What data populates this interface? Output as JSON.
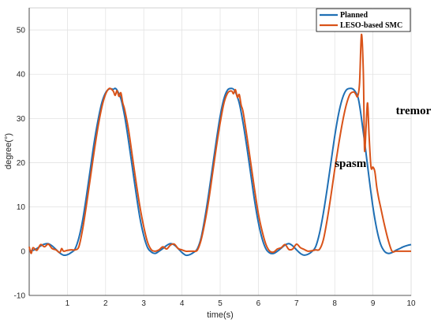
{
  "chart_data": {
    "type": "line",
    "title": "",
    "xlabel": "time(s)",
    "ylabel": "degree(°)",
    "xlim": [
      0,
      10
    ],
    "ylim": [
      -10,
      55
    ],
    "grid": true,
    "legend_placement": "top-right",
    "x_ticks": [
      1,
      2,
      3,
      4,
      5,
      6,
      7,
      8,
      9,
      10
    ],
    "y_ticks": [
      -10,
      0,
      10,
      20,
      30,
      40,
      50
    ],
    "colors": {
      "Planned": "#1f6fb4",
      "LESO-based SMC": "#d95319"
    },
    "series": [
      {
        "name": "Planned",
        "x": [
          0,
          0.1,
          0.2,
          0.3,
          0.4,
          0.5,
          0.6,
          0.7,
          0.8,
          0.9,
          1.0,
          1.1,
          1.2,
          1.3,
          1.4,
          1.5,
          1.6,
          1.7,
          1.8,
          1.9,
          2.0,
          2.1,
          2.2,
          2.25,
          2.3,
          2.4,
          2.5,
          2.6,
          2.7,
          2.8,
          2.9,
          3.0,
          3.1,
          3.2,
          3.3,
          3.4,
          3.5,
          3.6,
          3.7,
          3.8,
          3.9,
          4.0,
          4.1,
          4.2,
          4.3,
          4.4,
          4.5,
          4.6,
          4.7,
          4.8,
          4.9,
          5.0,
          5.1,
          5.2,
          5.3,
          5.35,
          5.4,
          5.5,
          5.6,
          5.7,
          5.8,
          5.9,
          6.0,
          6.1,
          6.2,
          6.3,
          6.4,
          6.5,
          6.6,
          6.7,
          6.8,
          6.9,
          7.0,
          7.1,
          7.2,
          7.3,
          7.4,
          7.5,
          7.6,
          7.7,
          7.8,
          7.9,
          8.0,
          8.1,
          8.2,
          8.3,
          8.4,
          8.5,
          8.6,
          8.65,
          8.7,
          8.8,
          8.9,
          9.0,
          9.1,
          9.2,
          9.3,
          9.4,
          9.5,
          9.6,
          9.7,
          9.8,
          9.9,
          10.0
        ],
        "y": [
          0,
          0.2,
          0.6,
          1.2,
          1.6,
          1.7,
          1.2,
          0.4,
          -0.4,
          -0.9,
          -0.8,
          -0.3,
          0.5,
          3.0,
          7.0,
          12.5,
          18.5,
          24.5,
          29.5,
          33.5,
          35.8,
          36.7,
          36.6,
          36.8,
          36.4,
          34.5,
          30.5,
          25.0,
          19.0,
          13.0,
          7.5,
          3.5,
          0.8,
          -0.2,
          -0.5,
          0.0,
          0.6,
          1.3,
          1.7,
          1.4,
          0.6,
          -0.3,
          -0.9,
          -0.8,
          -0.3,
          0.5,
          3.0,
          7.5,
          13.0,
          19.0,
          25.0,
          30.5,
          34.5,
          36.5,
          36.8,
          36.6,
          36.0,
          33.5,
          29.0,
          23.5,
          17.5,
          11.5,
          6.5,
          2.8,
          0.5,
          -0.4,
          -0.5,
          0.0,
          0.7,
          1.4,
          1.7,
          1.2,
          0.3,
          -0.5,
          -0.9,
          -0.7,
          -0.1,
          1.0,
          4.0,
          8.5,
          14.0,
          20.0,
          26.0,
          31.0,
          34.5,
          36.4,
          36.8,
          36.5,
          35.0,
          33.0,
          30.0,
          23.5,
          16.5,
          10.0,
          5.0,
          1.6,
          0.0,
          -0.5,
          -0.3,
          0.2,
          0.6,
          1.0,
          1.3,
          1.5
        ]
      },
      {
        "name": "LESO-based SMC",
        "x": [
          0,
          0.05,
          0.1,
          0.2,
          0.3,
          0.4,
          0.5,
          0.6,
          0.7,
          0.8,
          0.85,
          0.9,
          1.0,
          1.1,
          1.2,
          1.3,
          1.4,
          1.5,
          1.6,
          1.7,
          1.8,
          1.9,
          2.0,
          2.1,
          2.2,
          2.25,
          2.3,
          2.35,
          2.4,
          2.45,
          2.5,
          2.6,
          2.7,
          2.8,
          2.9,
          3.0,
          3.1,
          3.2,
          3.3,
          3.4,
          3.5,
          3.6,
          3.7,
          3.8,
          3.9,
          4.0,
          4.1,
          4.2,
          4.3,
          4.4,
          4.5,
          4.6,
          4.7,
          4.8,
          4.9,
          5.0,
          5.1,
          5.2,
          5.3,
          5.35,
          5.4,
          5.45,
          5.5,
          5.55,
          5.6,
          5.7,
          5.8,
          5.9,
          6.0,
          6.1,
          6.2,
          6.3,
          6.4,
          6.5,
          6.6,
          6.7,
          6.8,
          6.9,
          7.0,
          7.1,
          7.2,
          7.3,
          7.4,
          7.5,
          7.6,
          7.7,
          7.8,
          7.9,
          8.0,
          8.1,
          8.2,
          8.3,
          8.4,
          8.5,
          8.55,
          8.6,
          8.65,
          8.7,
          8.75,
          8.78,
          8.82,
          8.86,
          8.9,
          8.95,
          9.0,
          9.05,
          9.1,
          9.15,
          9.2,
          9.3,
          9.4,
          9.5,
          9.6,
          9.7,
          9.8,
          9.9,
          10.0
        ],
        "y": [
          1.0,
          -0.5,
          0.8,
          0.2,
          1.5,
          1.0,
          1.6,
          0.6,
          0.3,
          -0.3,
          0.6,
          0.0,
          0.2,
          0.3,
          0.3,
          1.0,
          5.0,
          10.5,
          16.5,
          22.5,
          28.0,
          32.5,
          35.5,
          36.8,
          36.2,
          35.2,
          36.3,
          35.0,
          35.8,
          33.5,
          32.0,
          27.5,
          21.5,
          15.5,
          10.0,
          5.5,
          2.0,
          0.3,
          0.0,
          0.3,
          1.0,
          0.5,
          1.4,
          1.6,
          0.6,
          0.3,
          0.0,
          0.0,
          0.0,
          0.2,
          2.5,
          6.5,
          11.5,
          17.5,
          23.5,
          29.0,
          33.5,
          35.8,
          36.2,
          35.6,
          36.5,
          34.8,
          35.4,
          33.0,
          31.5,
          26.0,
          20.0,
          14.0,
          8.5,
          4.5,
          1.5,
          0.0,
          -0.2,
          0.5,
          0.8,
          1.5,
          0.4,
          0.5,
          1.6,
          0.8,
          0.4,
          0.0,
          0.1,
          0.3,
          0.4,
          2.5,
          7.0,
          12.5,
          18.5,
          24.0,
          29.0,
          33.0,
          35.5,
          36.0,
          35.5,
          35.0,
          38.0,
          49.0,
          40.0,
          23.0,
          28.0,
          33.5,
          26.0,
          19.0,
          19.0,
          18.0,
          14.5,
          12.0,
          10.0,
          6.0,
          2.5,
          0.0,
          0.0,
          0.0,
          0.0,
          0.0,
          0.0
        ]
      }
    ],
    "annotations": [
      {
        "text": "tremor",
        "x": 9.6,
        "y": 31
      },
      {
        "text": "spasm",
        "x": 8.0,
        "y": 19
      }
    ]
  }
}
